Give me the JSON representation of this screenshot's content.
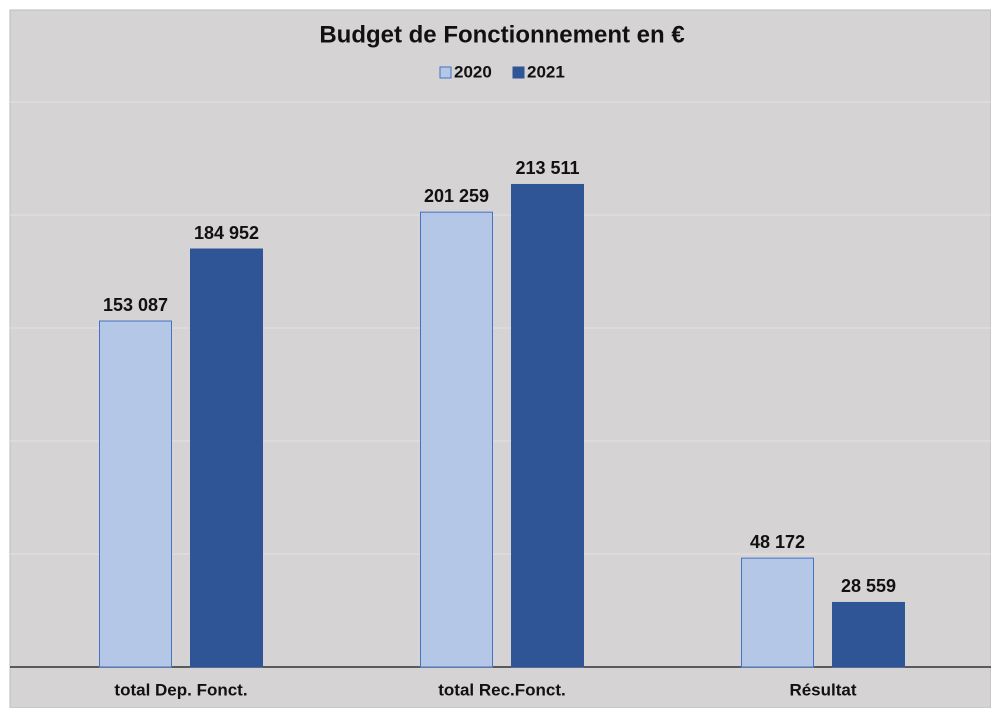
{
  "chart_data": {
    "type": "bar",
    "title": "Budget de Fonctionnement en €",
    "categories": [
      "total Dep. Fonct.",
      "total Rec.Fonct.",
      "Résultat"
    ],
    "series": [
      {
        "name": "2020",
        "color": "#b4c7e7",
        "values": [
          153087,
          201259,
          48172
        ],
        "value_labels": [
          "153 087",
          "201 259",
          "48 172"
        ]
      },
      {
        "name": "2021",
        "color": "#2f5597",
        "values": [
          184952,
          213511,
          28559
        ],
        "value_labels": [
          "184 952",
          "213 511",
          "28 559"
        ]
      }
    ],
    "ylim": [
      0,
      250000
    ],
    "yticks": [
      0,
      50000,
      100000,
      150000,
      200000,
      250000
    ],
    "grid": true,
    "legend": "top"
  }
}
